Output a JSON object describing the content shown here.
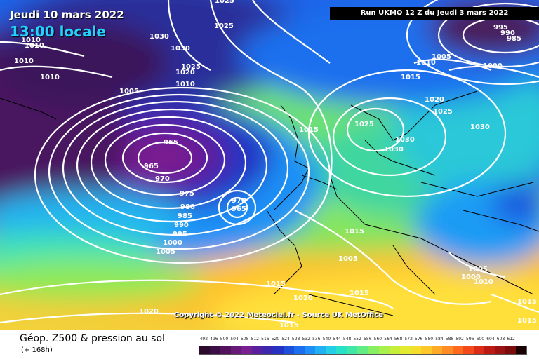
{
  "header": {
    "date": "Jeudi 10 mars 2022",
    "time": "13:00 locale",
    "run": "Run UKMO 12 Z du Jeudi 3 mars 2022"
  },
  "copyright": "Copyright © 2022 Meteociel.fr - Source UK MetOffice",
  "footer": {
    "title": "Géop. Z500 & pression au sol",
    "subtitle": "(+ 168h)"
  },
  "legend": {
    "ticks": [
      "492",
      "496",
      "500",
      "504",
      "508",
      "512",
      "516",
      "520",
      "524",
      "528",
      "532",
      "536",
      "540",
      "544",
      "548",
      "552",
      "556",
      "560",
      "564",
      "568",
      "572",
      "576",
      "580",
      "584",
      "588",
      "592",
      "596",
      "600",
      "604",
      "608",
      "612"
    ],
    "colors": [
      "#2b0a2e",
      "#3d0d45",
      "#52125e",
      "#681a78",
      "#7a1f8f",
      "#5a1f9c",
      "#3c27ae",
      "#2532c3",
      "#1c4fdc",
      "#1d6ff0",
      "#1f8ff8",
      "#20b0f4",
      "#22cfe4",
      "#27e2c9",
      "#3fe8a7",
      "#62ec85",
      "#86ef62",
      "#a8f04a",
      "#c7ef3a",
      "#e3ea2f",
      "#f5de2b",
      "#ffc82a",
      "#ffab28",
      "#ff8c24",
      "#ff6a1f",
      "#f44a1b",
      "#dc2c17",
      "#be1a15",
      "#9c1111",
      "#7c0c0c",
      "#1a0000"
    ]
  },
  "isobars": [
    "1025",
    "1025",
    "1030",
    "1030",
    "1010",
    "1010",
    "1010",
    "1010",
    "1025",
    "1020",
    "1010",
    "1005",
    "965",
    "965",
    "970",
    "975",
    "980",
    "985",
    "990",
    "995",
    "1000",
    "1005",
    "970",
    "965",
    "1015",
    "1025",
    "1030",
    "1030",
    "1020",
    "1025",
    "1030",
    "1015",
    "1010",
    "1005",
    "1000",
    "995",
    "990",
    "985",
    "1015",
    "1005",
    "1015",
    "1020",
    "1015",
    "1020",
    "1015",
    "1005",
    "1000",
    "1010",
    "1015",
    "1015"
  ]
}
